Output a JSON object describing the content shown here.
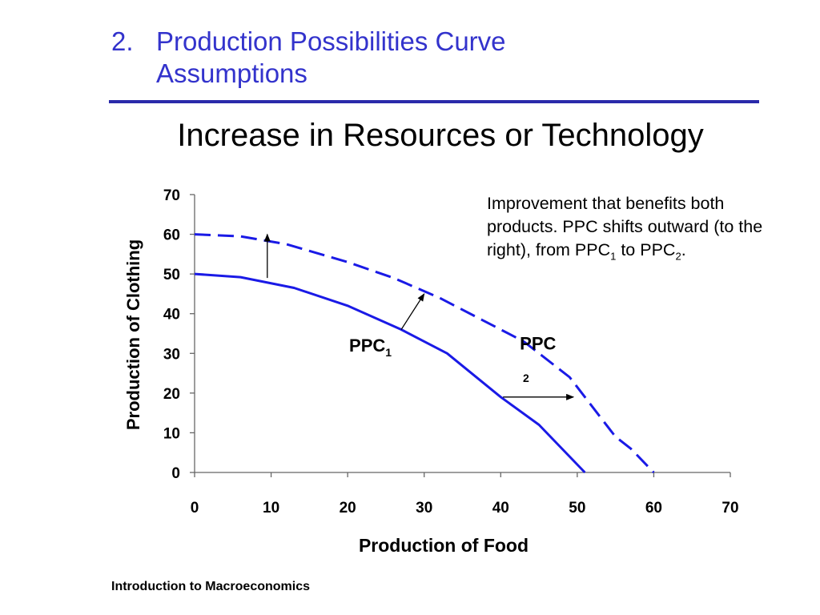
{
  "slide": {
    "number": "2.",
    "title_line1": "Production Possibilities Curve",
    "title_line2": "Assumptions",
    "subtitle": "Increase in Resources or Technology",
    "footer": "Introduction to Macroeconomics",
    "accent_color": "#3333cc"
  },
  "annotation": {
    "text_main": "Improvement that benefits both products. PPC shifts outward (to the right), from ",
    "ppc": "PPC",
    "sub1": "1",
    "to": " to ",
    "sub2": "2",
    "end": "."
  },
  "chart_data": {
    "type": "line",
    "xlabel": "Production of Food",
    "ylabel": "Production of Clothing",
    "xlim": [
      0,
      70
    ],
    "ylim": [
      0,
      70
    ],
    "xticks": [
      0,
      10,
      20,
      30,
      40,
      50,
      60,
      70
    ],
    "yticks": [
      0,
      10,
      20,
      30,
      40,
      50,
      60,
      70
    ],
    "grid": false,
    "series": [
      {
        "style": "solid",
        "color": "#1a1ae6",
        "x": [
          0,
          6,
          13,
          20,
          27,
          33,
          40,
          45,
          51
        ],
        "y": [
          50,
          49.2,
          46.5,
          42,
          36,
          30,
          19,
          12,
          0
        ]
      },
      {
        "style": "dashed",
        "color": "#1a1ae6",
        "x": [
          0,
          6,
          12,
          20,
          26,
          32,
          37,
          43,
          49,
          55,
          57,
          60
        ],
        "y": [
          60,
          59.5,
          57.5,
          53,
          49,
          44,
          39,
          33,
          24,
          9,
          6,
          0
        ]
      }
    ],
    "labels": [
      {
        "text": "PPC",
        "sub": "1",
        "x": 20.2,
        "y": 30.5
      },
      {
        "text": "PPC",
        "sub": "",
        "x": 42.5,
        "y": 31
      },
      {
        "text": "2",
        "sub": "",
        "x": 42.9,
        "y": 22.8
      }
    ],
    "arrows": [
      {
        "from": [
          9.5,
          49
        ],
        "to": [
          9.5,
          60
        ]
      },
      {
        "from": [
          27,
          36
        ],
        "to": [
          30,
          45
        ]
      },
      {
        "from": [
          40.3,
          19
        ],
        "to": [
          49.5,
          19
        ]
      }
    ]
  }
}
